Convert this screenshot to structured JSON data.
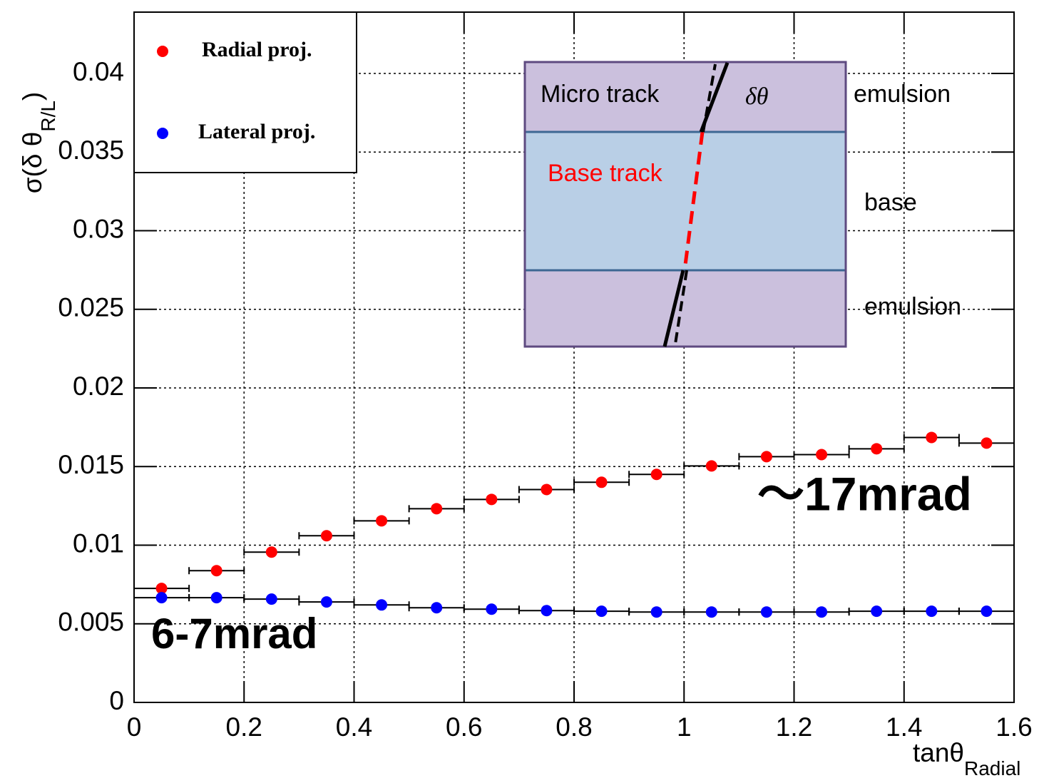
{
  "chart_data": {
    "type": "scatter",
    "xlabel": "tanθ",
    "xlabel_subscript": "Radial",
    "ylabel": "σ(δ θ",
    "ylabel_subscript": "R/L",
    "ylabel_close": ")",
    "xlim": [
      0,
      1.6
    ],
    "ylim": [
      0,
      0.0439
    ],
    "xticks": [
      0,
      0.2,
      0.4,
      0.6,
      0.8,
      1,
      1.2,
      1.4,
      1.6
    ],
    "yticks": [
      0,
      0.005,
      0.01,
      0.015,
      0.02,
      0.025,
      0.03,
      0.035,
      0.04
    ],
    "grid": true,
    "legend": "upper left",
    "x": [
      0.05,
      0.15,
      0.25,
      0.35,
      0.45,
      0.55,
      0.65,
      0.75,
      0.85,
      0.95,
      1.05,
      1.15,
      1.25,
      1.35,
      1.45,
      1.55
    ],
    "x_error": 0.05,
    "series": [
      {
        "name": "Radial proj.",
        "color": "#ff0000",
        "values": [
          0.00725,
          0.00838,
          0.00956,
          0.0106,
          0.01155,
          0.01232,
          0.01291,
          0.01354,
          0.014,
          0.0145,
          0.01504,
          0.01563,
          0.01576,
          0.01613,
          0.01685,
          0.01649
        ]
      },
      {
        "name": "Lateral proj.",
        "color": "#0000ff",
        "values": [
          0.00666,
          0.00666,
          0.00657,
          0.00639,
          0.0062,
          0.00602,
          0.00593,
          0.00584,
          0.0058,
          0.00575,
          0.00575,
          0.00575,
          0.00575,
          0.0058,
          0.0058,
          0.0058
        ]
      }
    ],
    "annotations": [
      "～17mrad",
      "6-7mrad"
    ],
    "inset": {
      "micro_track": "Micro track",
      "delta_theta": "δθ",
      "base_track": "Base track",
      "emulsion_top": "emulsion",
      "base": "base",
      "emulsion_bottom": "emulsion"
    }
  }
}
